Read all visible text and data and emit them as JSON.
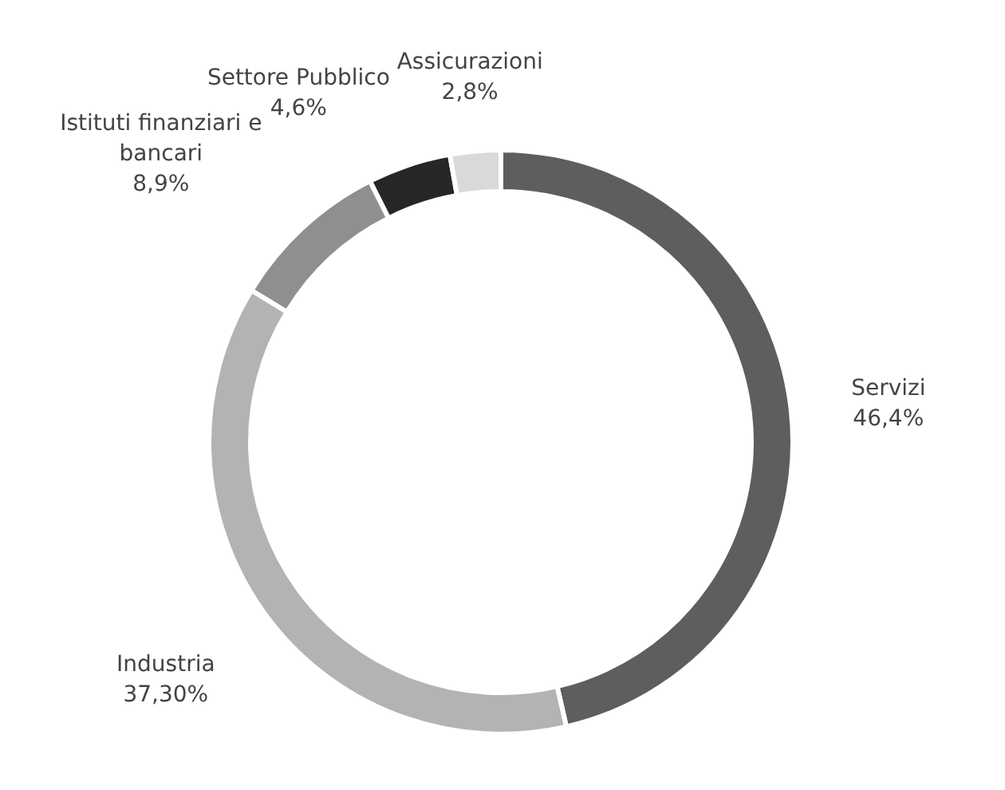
{
  "chart_data": {
    "type": "donut",
    "categories": [
      "Servizi",
      "Industria",
      "Istituti finanziari e bancari",
      "Settore Pubblico",
      "Assicurazioni"
    ],
    "values": [
      46.4,
      37.3,
      8.9,
      4.6,
      2.8
    ],
    "value_labels": [
      "46,4%",
      "37,30%",
      "8,9%",
      "4,6%",
      "2,8%"
    ],
    "colors": [
      "#5e5e5e",
      "#b3b3b3",
      "#8f8f8f",
      "#262626",
      "#d9d9d9"
    ]
  }
}
